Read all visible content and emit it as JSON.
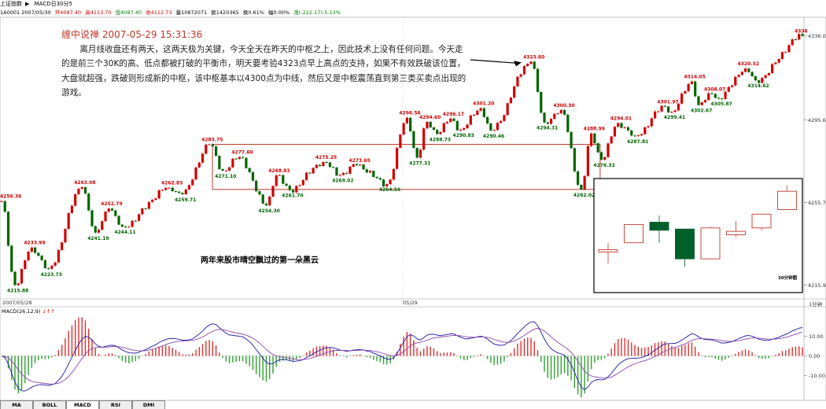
{
  "header": {
    "index_name": "上证指数",
    "play_icon": "triangle-right",
    "indicator_title": "MACD日30分5",
    "code_date": "1A0001 2007/05/30",
    "open": "开4087.40",
    "high": "高4113.70",
    "low": "低4087.40",
    "close": "收4112.73",
    "volume": "量10872071",
    "amount": "额1420365",
    "turnover": "换0.61%",
    "change_rate": "幅0.00%",
    "change": "涨(-222.17)-5.13%"
  },
  "annotation": {
    "title": "缠中说禅 2007-05-29 15:31:36",
    "body": "离月线收盘还有两天，这两天极为关键，今天全天在昨天的中枢之上，因此技术上没有任何问题。今天走的是前三个30K的高、低点都被打破的平衡市，明天要考验4323点早上高点的支持，如果不有效跌破该位置，大盘就超强，跌破则形成新的中枢，该中枢基本以4300点为中线，然后又是中枢震荡直到第三类买卖点出现的游戏。"
  },
  "cloud_caption": "两年来股市晴空飘过的第一朵黑云",
  "inset_label": "30分钟图",
  "x_axis": {
    "date_left": "2007/05/28",
    "date_mid": "05/29",
    "period": "1分钟"
  },
  "macd_title": "MACD(26,12,9)",
  "tabs": [
    "MA",
    "BOLL",
    "MACD",
    "RSI",
    "DMI"
  ],
  "colors": {
    "up": "#d00000",
    "down": "#006400",
    "box": "#c0392b",
    "dif": "#1a1aa0",
    "dea": "#8e44ad"
  },
  "chart_data": [
    {
      "type": "line",
      "title": "上证指数 1分钟",
      "yaxis_ticks": [
        4215.88,
        4255.7,
        4295.6,
        4336.0
      ],
      "ylim": [
        4210,
        4345
      ],
      "x_points": 240,
      "waypoints": [
        {
          "i": 0,
          "v": 4256.36,
          "label": "4256.36"
        },
        {
          "i": 4,
          "v": 4215.88,
          "label": "4215.88"
        },
        {
          "i": 9,
          "v": 4233.99,
          "label": "4233.99"
        },
        {
          "i": 14,
          "v": 4223.73,
          "label": "4223.73"
        },
        {
          "i": 24,
          "v": 4263.08,
          "label": "4263.08"
        },
        {
          "i": 28,
          "v": 4241.19,
          "label": "4241.19"
        },
        {
          "i": 32,
          "v": 4252.79,
          "label": "4252.79"
        },
        {
          "i": 36,
          "v": 4244.11,
          "label": "4244.11"
        },
        {
          "i": 50,
          "v": 4262.83,
          "label": "4262.83"
        },
        {
          "i": 54,
          "v": 4259.71,
          "label": "4259.71"
        },
        {
          "i": 62,
          "v": 4283.75,
          "label": "4283.75"
        },
        {
          "i": 66,
          "v": 4271.1,
          "label": "4271.10"
        },
        {
          "i": 71,
          "v": 4277.6,
          "label": "4277.60"
        },
        {
          "i": 79,
          "v": 4254.3,
          "label": "4254.30"
        },
        {
          "i": 82,
          "v": 4268.83,
          "label": "4268.83"
        },
        {
          "i": 86,
          "v": 4261.7,
          "label": "4261.70"
        },
        {
          "i": 96,
          "v": 4275.25,
          "label": "4275.25"
        },
        {
          "i": 101,
          "v": 4269.02,
          "label": "4269.02"
        },
        {
          "i": 106,
          "v": 4273.65,
          "label": "4273.65"
        },
        {
          "i": 115,
          "v": 4264.56,
          "label": "4264.56"
        },
        {
          "i": 121,
          "v": 4296.56,
          "label": "4296.56"
        },
        {
          "i": 124,
          "v": 4277.31,
          "label": "4277.31"
        },
        {
          "i": 127,
          "v": 4294.6,
          "label": "4294.60"
        },
        {
          "i": 130,
          "v": 4288.73,
          "label": "4288.73"
        },
        {
          "i": 134,
          "v": 4296.17,
          "label": "4296.17"
        },
        {
          "i": 137,
          "v": 4290.83,
          "label": "4290.83"
        },
        {
          "i": 143,
          "v": 4301.2,
          "label": "4301.20"
        },
        {
          "i": 146,
          "v": 4290.46,
          "label": "4290.46"
        },
        {
          "i": 158,
          "v": 4323.6,
          "label": "4323.60"
        },
        {
          "i": 162,
          "v": 4294.31,
          "label": "4294.31"
        },
        {
          "i": 167,
          "v": 4300.3,
          "label": "4300.30"
        },
        {
          "i": 173,
          "v": 4262.02,
          "label": "4262.02"
        },
        {
          "i": 176,
          "v": 4288.99,
          "label": "4288.99"
        },
        {
          "i": 179,
          "v": 4276.32,
          "label": "4276.32"
        },
        {
          "i": 184,
          "v": 4294.01,
          "label": "4294.01"
        },
        {
          "i": 189,
          "v": 4287.81,
          "label": "4287.81"
        },
        {
          "i": 198,
          "v": 4301.97,
          "label": "4301.97"
        },
        {
          "i": 200,
          "v": 4299.41,
          "label": "4299.41"
        },
        {
          "i": 206,
          "v": 4314.05,
          "label": "4314.05"
        },
        {
          "i": 208,
          "v": 4302.67,
          "label": "4302.67"
        },
        {
          "i": 212,
          "v": 4308.07,
          "label": "4308.07"
        },
        {
          "i": 214,
          "v": 4305.87,
          "label": "4305.87"
        },
        {
          "i": 222,
          "v": 4320.32,
          "label": "4320.32"
        },
        {
          "i": 225,
          "v": 4314.62,
          "label": "4314.62"
        },
        {
          "i": 239,
          "v": 4336.0,
          "label": "4336"
        }
      ],
      "zhongshu_box": {
        "from_i": 62,
        "to_i": 173,
        "low": 4262.02,
        "high": 4283.75
      }
    },
    {
      "type": "bar",
      "title": "30分钟图",
      "candles": [
        {
          "o": 4268,
          "c": 4270,
          "h": 4276,
          "l": 4258
        },
        {
          "o": 4276,
          "c": 4292,
          "h": 4292,
          "l": 4276
        },
        {
          "o": 4294,
          "c": 4287,
          "h": 4300,
          "l": 4276
        },
        {
          "o": 4288,
          "c": 4262,
          "h": 4288,
          "l": 4255
        },
        {
          "o": 4262,
          "c": 4289,
          "h": 4290,
          "l": 4262
        },
        {
          "o": 4283,
          "c": 4286,
          "h": 4295,
          "l": 4281
        },
        {
          "o": 4289,
          "c": 4301,
          "h": 4301,
          "l": 4287
        },
        {
          "o": 4305,
          "c": 4321,
          "h": 4326,
          "l": 4305
        }
      ]
    },
    {
      "type": "line",
      "title": "MACD(26,12,9)",
      "yaxis_ticks": [
        10.0,
        0.0,
        -10.0
      ],
      "ylim": [
        -22,
        22
      ],
      "x_points": 240
    }
  ]
}
